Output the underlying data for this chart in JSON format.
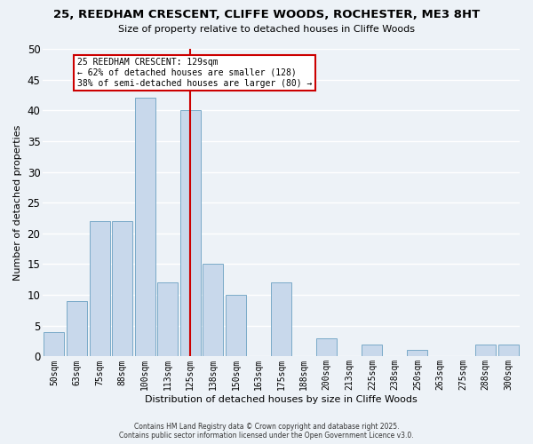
{
  "title": "25, REEDHAM CRESCENT, CLIFFE WOODS, ROCHESTER, ME3 8HT",
  "subtitle": "Size of property relative to detached houses in Cliffe Woods",
  "xlabel": "Distribution of detached houses by size in Cliffe Woods",
  "ylabel": "Number of detached properties",
  "bar_labels": [
    "50sqm",
    "63sqm",
    "75sqm",
    "88sqm",
    "100sqm",
    "113sqm",
    "125sqm",
    "138sqm",
    "150sqm",
    "163sqm",
    "175sqm",
    "188sqm",
    "200sqm",
    "213sqm",
    "225sqm",
    "238sqm",
    "250sqm",
    "263sqm",
    "275sqm",
    "288sqm",
    "300sqm"
  ],
  "bar_values": [
    4,
    9,
    22,
    22,
    42,
    12,
    40,
    15,
    10,
    0,
    12,
    0,
    3,
    0,
    2,
    0,
    1,
    0,
    0,
    2,
    2
  ],
  "bar_color": "#c8d8eb",
  "bar_edge_color": "#7aaac8",
  "vline_x_index": 6,
  "vline_color": "#cc0000",
  "annotation_title": "25 REEDHAM CRESCENT: 129sqm",
  "annotation_line1": "← 62% of detached houses are smaller (128)",
  "annotation_line2": "38% of semi-detached houses are larger (80) →",
  "annotation_box_facecolor": "#ffffff",
  "annotation_box_edgecolor": "#cc0000",
  "ylim": [
    0,
    50
  ],
  "yticks": [
    0,
    5,
    10,
    15,
    20,
    25,
    30,
    35,
    40,
    45,
    50
  ],
  "bg_color": "#edf2f7",
  "grid_color": "#ffffff",
  "footer1": "Contains HM Land Registry data © Crown copyright and database right 2025.",
  "footer2": "Contains public sector information licensed under the Open Government Licence v3.0."
}
